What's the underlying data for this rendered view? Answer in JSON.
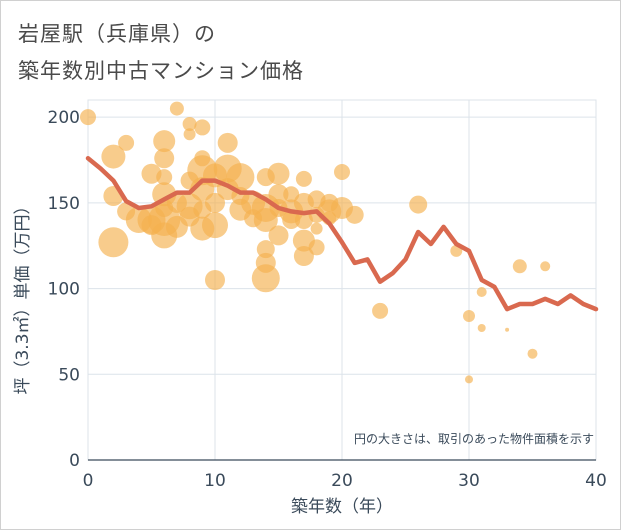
{
  "title_line1": "岩屋駅（兵庫県）の",
  "title_line2": "築年数別中古マンション価格",
  "chart_data": {
    "type": "scatter",
    "xlabel": "築年数（年）",
    "ylabel": "坪（3.3㎡）単価（万円）",
    "xlim": [
      0,
      40
    ],
    "ylim": [
      0,
      210
    ],
    "xticks": [
      0,
      10,
      20,
      30,
      40
    ],
    "yticks": [
      0,
      50,
      100,
      150,
      200
    ],
    "grid": true,
    "note": "円の大きさは、取引のあった物件面積を示す",
    "colors": {
      "bubble": "#f4b04f",
      "line": "#d9694f",
      "grid": "#dce3ea"
    },
    "points": [
      {
        "x": 0,
        "y": 200,
        "s": 8
      },
      {
        "x": 2,
        "y": 177,
        "s": 12
      },
      {
        "x": 2,
        "y": 154,
        "s": 10
      },
      {
        "x": 2,
        "y": 127,
        "s": 15
      },
      {
        "x": 3,
        "y": 185,
        "s": 8
      },
      {
        "x": 3,
        "y": 145,
        "s": 9
      },
      {
        "x": 4,
        "y": 140,
        "s": 13
      },
      {
        "x": 5,
        "y": 167,
        "s": 10
      },
      {
        "x": 5,
        "y": 140,
        "s": 14
      },
      {
        "x": 5,
        "y": 137,
        "s": 10
      },
      {
        "x": 6,
        "y": 186,
        "s": 11
      },
      {
        "x": 6,
        "y": 176,
        "s": 10
      },
      {
        "x": 6,
        "y": 165,
        "s": 8
      },
      {
        "x": 6,
        "y": 155,
        "s": 12
      },
      {
        "x": 6,
        "y": 147,
        "s": 9
      },
      {
        "x": 6,
        "y": 140,
        "s": 16
      },
      {
        "x": 6,
        "y": 131,
        "s": 13
      },
      {
        "x": 7,
        "y": 205,
        "s": 7
      },
      {
        "x": 7,
        "y": 150,
        "s": 10
      },
      {
        "x": 7,
        "y": 136,
        "s": 11
      },
      {
        "x": 8,
        "y": 196,
        "s": 7
      },
      {
        "x": 8,
        "y": 190,
        "s": 6
      },
      {
        "x": 8,
        "y": 163,
        "s": 9
      },
      {
        "x": 8,
        "y": 148,
        "s": 13
      },
      {
        "x": 8,
        "y": 142,
        "s": 10
      },
      {
        "x": 9,
        "y": 194,
        "s": 8
      },
      {
        "x": 9,
        "y": 176,
        "s": 8
      },
      {
        "x": 9,
        "y": 169,
        "s": 15
      },
      {
        "x": 9,
        "y": 158,
        "s": 12
      },
      {
        "x": 9,
        "y": 146,
        "s": 9
      },
      {
        "x": 9,
        "y": 135,
        "s": 12
      },
      {
        "x": 10,
        "y": 166,
        "s": 12
      },
      {
        "x": 10,
        "y": 150,
        "s": 10
      },
      {
        "x": 10,
        "y": 137,
        "s": 13
      },
      {
        "x": 10,
        "y": 105,
        "s": 10
      },
      {
        "x": 11,
        "y": 185,
        "s": 10
      },
      {
        "x": 11,
        "y": 170,
        "s": 14
      },
      {
        "x": 11,
        "y": 158,
        "s": 11
      },
      {
        "x": 12,
        "y": 165,
        "s": 14
      },
      {
        "x": 12,
        "y": 154,
        "s": 9
      },
      {
        "x": 12,
        "y": 146,
        "s": 11
      },
      {
        "x": 13,
        "y": 150,
        "s": 12
      },
      {
        "x": 13,
        "y": 141,
        "s": 9
      },
      {
        "x": 14,
        "y": 165,
        "s": 9
      },
      {
        "x": 14,
        "y": 147,
        "s": 14
      },
      {
        "x": 14,
        "y": 140,
        "s": 12
      },
      {
        "x": 14,
        "y": 123,
        "s": 9
      },
      {
        "x": 14,
        "y": 115,
        "s": 10
      },
      {
        "x": 14,
        "y": 106,
        "s": 14
      },
      {
        "x": 15,
        "y": 167,
        "s": 11
      },
      {
        "x": 15,
        "y": 155,
        "s": 10
      },
      {
        "x": 15,
        "y": 147,
        "s": 9
      },
      {
        "x": 15,
        "y": 131,
        "s": 10
      },
      {
        "x": 16,
        "y": 155,
        "s": 8
      },
      {
        "x": 16,
        "y": 145,
        "s": 12
      },
      {
        "x": 16,
        "y": 140,
        "s": 9
      },
      {
        "x": 17,
        "y": 164,
        "s": 8
      },
      {
        "x": 17,
        "y": 150,
        "s": 10
      },
      {
        "x": 17,
        "y": 140,
        "s": 9
      },
      {
        "x": 17,
        "y": 128,
        "s": 11
      },
      {
        "x": 17,
        "y": 119,
        "s": 10
      },
      {
        "x": 18,
        "y": 152,
        "s": 9
      },
      {
        "x": 18,
        "y": 143,
        "s": 8
      },
      {
        "x": 18,
        "y": 135,
        "s": 6
      },
      {
        "x": 18,
        "y": 124,
        "s": 8
      },
      {
        "x": 19,
        "y": 150,
        "s": 9
      },
      {
        "x": 19,
        "y": 145,
        "s": 12
      },
      {
        "x": 19,
        "y": 141,
        "s": 7
      },
      {
        "x": 20,
        "y": 168,
        "s": 8
      },
      {
        "x": 20,
        "y": 147,
        "s": 11
      },
      {
        "x": 21,
        "y": 143,
        "s": 9
      },
      {
        "x": 23,
        "y": 87,
        "s": 8
      },
      {
        "x": 26,
        "y": 149,
        "s": 9
      },
      {
        "x": 29,
        "y": 122,
        "s": 6
      },
      {
        "x": 30,
        "y": 84,
        "s": 6
      },
      {
        "x": 30,
        "y": 47,
        "s": 4
      },
      {
        "x": 31,
        "y": 98,
        "s": 5
      },
      {
        "x": 31,
        "y": 77,
        "s": 4
      },
      {
        "x": 33,
        "y": 76,
        "s": 2
      },
      {
        "x": 34,
        "y": 113,
        "s": 7
      },
      {
        "x": 35,
        "y": 62,
        "s": 5
      },
      {
        "x": 36,
        "y": 113,
        "s": 5
      }
    ],
    "series": [
      {
        "x": [
          0,
          1,
          2,
          3,
          4,
          5,
          6,
          7,
          8,
          9,
          10,
          11,
          12,
          13,
          14,
          15,
          16,
          17,
          18,
          19,
          20,
          21,
          22,
          23,
          24,
          25,
          26,
          27,
          28,
          29,
          30,
          31,
          32,
          33,
          34,
          35,
          36,
          37,
          38,
          39,
          40
        ],
        "values": [
          176,
          170,
          163,
          151,
          147,
          148,
          152,
          156,
          156,
          163,
          163,
          160,
          156,
          156,
          152,
          147,
          145,
          144,
          145,
          138,
          127,
          115,
          117,
          104,
          109,
          117,
          133,
          126,
          136,
          126,
          122,
          105,
          101,
          88,
          91,
          91,
          94,
          91,
          96,
          91,
          88
        ]
      }
    ]
  }
}
